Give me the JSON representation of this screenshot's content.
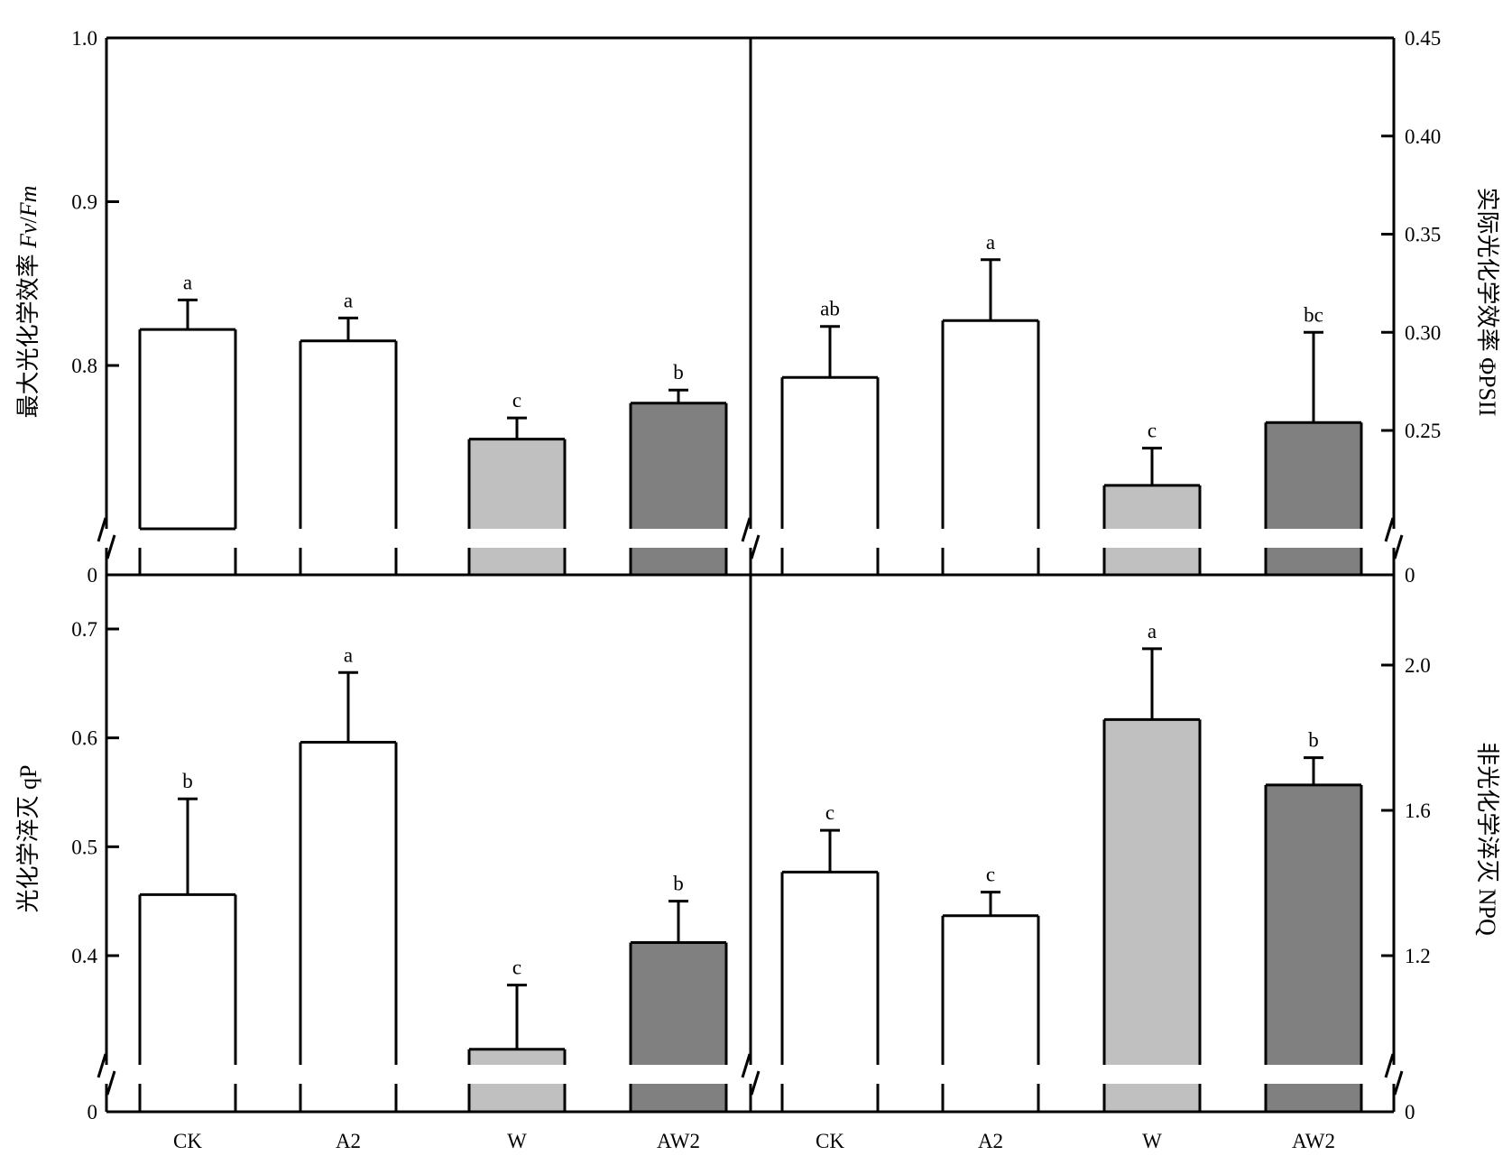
{
  "categories": [
    "CK",
    "A2",
    "W",
    "AW2"
  ],
  "colors": {
    "CK": "#ffffff",
    "A2": "#ffffff",
    "W": "#c0c0c0",
    "AW2": "#808080",
    "stroke": "#000000"
  },
  "chart_data": [
    {
      "type": "bar",
      "panel": "top-left",
      "ylabel": "最大光化学效率 Fv/Fm",
      "ylabel_parts": [
        "最大光化学效率 ",
        "Fv",
        "/",
        "Fm"
      ],
      "yaxis_side": "left",
      "axis_break": true,
      "ylim": [
        0.72,
        1.0
      ],
      "yticks": [
        "1.0",
        "0.9",
        "0.8"
      ],
      "ytick_values": [
        1.0,
        0.9,
        0.8
      ],
      "zero_label": "0",
      "categories": [
        "CK",
        "A2",
        "W",
        "AW2"
      ],
      "values": [
        0.822,
        0.815,
        0.755,
        0.777
      ],
      "errors": [
        0.018,
        0.014,
        0.013,
        0.008
      ],
      "letters": [
        "a",
        "a",
        "c",
        "b"
      ]
    },
    {
      "type": "bar",
      "panel": "top-right",
      "ylabel": "实际光化学效率 ΦPSII",
      "ylabel_parts": [
        "实际光化学效率 ΦPSII"
      ],
      "yaxis_side": "right",
      "axis_break": true,
      "ylim": [
        0.18,
        0.45
      ],
      "yticks": [
        "0.45",
        "0.40",
        "0.35",
        "0.30",
        "0.25"
      ],
      "ytick_values": [
        0.45,
        0.4,
        0.35,
        0.3,
        0.25
      ],
      "zero_label": "0",
      "categories": [
        "CK",
        "A2",
        "W",
        "AW2"
      ],
      "values": [
        0.277,
        0.306,
        0.222,
        0.254
      ],
      "errors": [
        0.026,
        0.031,
        0.019,
        0.046
      ],
      "letters": [
        "ab",
        "a",
        "c",
        "bc"
      ]
    },
    {
      "type": "bar",
      "panel": "bottom-left",
      "ylabel": "光化学淬灭 qP",
      "ylabel_parts": [
        "光化学淬灭 qP"
      ],
      "yaxis_side": "left",
      "axis_break": true,
      "ylim": [
        0.25,
        0.75
      ],
      "yticks": [
        "0.7",
        "0.6",
        "0.5",
        "0.4"
      ],
      "ytick_values": [
        0.7,
        0.6,
        0.5,
        0.4
      ],
      "zero_label": "0",
      "categories": [
        "CK",
        "A2",
        "W",
        "AW2"
      ],
      "values": [
        0.456,
        0.596,
        0.314,
        0.412
      ],
      "errors": [
        0.088,
        0.064,
        0.059,
        0.038
      ],
      "letters": [
        "b",
        "a",
        "c",
        "b"
      ]
    },
    {
      "type": "bar",
      "panel": "bottom-right",
      "ylabel": "非光化学淬灭 NPQ",
      "ylabel_parts": [
        "非光化学淬灭 NPQ"
      ],
      "yaxis_side": "right",
      "axis_break": true,
      "ylim": [
        0.8,
        2.3
      ],
      "yticks": [
        "2.0",
        "1.6",
        "1.2"
      ],
      "ytick_values": [
        2.0,
        1.6,
        1.2
      ],
      "zero_label": "0",
      "categories": [
        "CK",
        "A2",
        "W",
        "AW2"
      ],
      "values": [
        1.43,
        1.31,
        1.85,
        1.67
      ],
      "errors": [
        0.115,
        0.065,
        0.195,
        0.075
      ],
      "letters": [
        "c",
        "c",
        "a",
        "b"
      ]
    }
  ]
}
